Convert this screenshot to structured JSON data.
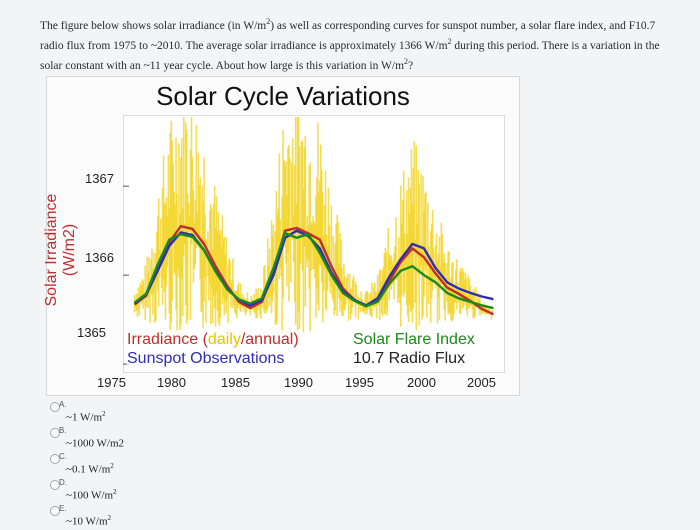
{
  "question": {
    "part1": "The figure below shows solar irradiance (in W/m",
    "part2": ") as well as corresponding curves for sunspot number, a solar flare index, and F10.7 radio flux from 1975 to ~2010. The average solar irradiance is approximately 1366 W/m",
    "part3": " during this period. There is a variation in the solar constant with an ~11 year cycle. About how large is this variation in W/m",
    "part4": "?",
    "sup": "2"
  },
  "chart_data": {
    "type": "line",
    "title": "Solar Cycle Variations",
    "ylabel": "Solar Irradiance (W/m2)",
    "yticks": [
      "1365",
      "1366",
      "1367"
    ],
    "xticks": [
      "1975",
      "1980",
      "1985",
      "1990",
      "1995",
      "2000",
      "2005"
    ],
    "xlim": [
      1975,
      2008
    ],
    "ylim": [
      1364.9,
      1367.8
    ],
    "legend": {
      "irradiance_pre": "Irradiance (",
      "daily": "daily",
      "slash": "/",
      "annual": "annual",
      "close": ")",
      "sunspot": "Sunspot Observations",
      "flare": "Solar Flare Index",
      "radio": "10.7 Radio Flux"
    },
    "x": [
      1976,
      1977,
      1978,
      1979,
      1980,
      1981,
      1982,
      1983,
      1984,
      1985,
      1986,
      1987,
      1988,
      1989,
      1990,
      1991,
      1992,
      1993,
      1994,
      1995,
      1996,
      1997,
      1998,
      1999,
      2000,
      2001,
      2002,
      2003,
      2004,
      2005,
      2006,
      2007
    ],
    "series": [
      {
        "name": "Irradiance (annual)",
        "color": "#c02d2d",
        "values": [
          1365.67,
          1365.77,
          1366.1,
          1366.37,
          1366.55,
          1366.52,
          1366.35,
          1366.1,
          1365.88,
          1365.7,
          1365.63,
          1365.7,
          1366.05,
          1366.5,
          1366.53,
          1366.47,
          1366.4,
          1366.1,
          1365.85,
          1365.72,
          1365.65,
          1365.72,
          1365.93,
          1366.15,
          1366.3,
          1366.2,
          1366.02,
          1365.86,
          1365.79,
          1365.71,
          1365.62,
          1365.56
        ]
      },
      {
        "name": "Sunspot Observations",
        "color": "#2d2db8",
        "values": [
          1365.68,
          1365.78,
          1366.05,
          1366.33,
          1366.48,
          1366.45,
          1366.28,
          1366.05,
          1365.85,
          1365.72,
          1365.66,
          1365.72,
          1366.0,
          1366.42,
          1366.5,
          1366.44,
          1366.3,
          1366.03,
          1365.82,
          1365.72,
          1365.66,
          1365.74,
          1365.98,
          1366.18,
          1366.35,
          1366.3,
          1366.08,
          1365.92,
          1365.85,
          1365.8,
          1365.76,
          1365.73
        ]
      },
      {
        "name": "Solar Flare Index",
        "color": "#1a8a1a",
        "values": [
          1365.69,
          1365.79,
          1366.12,
          1366.4,
          1366.46,
          1366.43,
          1366.28,
          1366.04,
          1365.84,
          1365.73,
          1365.68,
          1365.74,
          1366.08,
          1366.47,
          1366.42,
          1366.46,
          1366.25,
          1366.0,
          1365.8,
          1365.71,
          1365.65,
          1365.7,
          1365.9,
          1366.05,
          1366.1,
          1366.0,
          1365.92,
          1365.8,
          1365.74,
          1365.7,
          1365.66,
          1365.63
        ]
      }
    ],
    "daily_band_color": "#f2d21a"
  },
  "options": [
    {
      "letter": "A.",
      "value": "~1 W/m",
      "sup": "2"
    },
    {
      "letter": "B.",
      "value": "~1000 W/m2",
      "sup": ""
    },
    {
      "letter": "C.",
      "value": "~0.1 W/m",
      "sup": "2"
    },
    {
      "letter": "D.",
      "value": "~100 W/m",
      "sup": "2"
    },
    {
      "letter": "E.",
      "value": "~10 W/m",
      "sup": "2"
    }
  ]
}
